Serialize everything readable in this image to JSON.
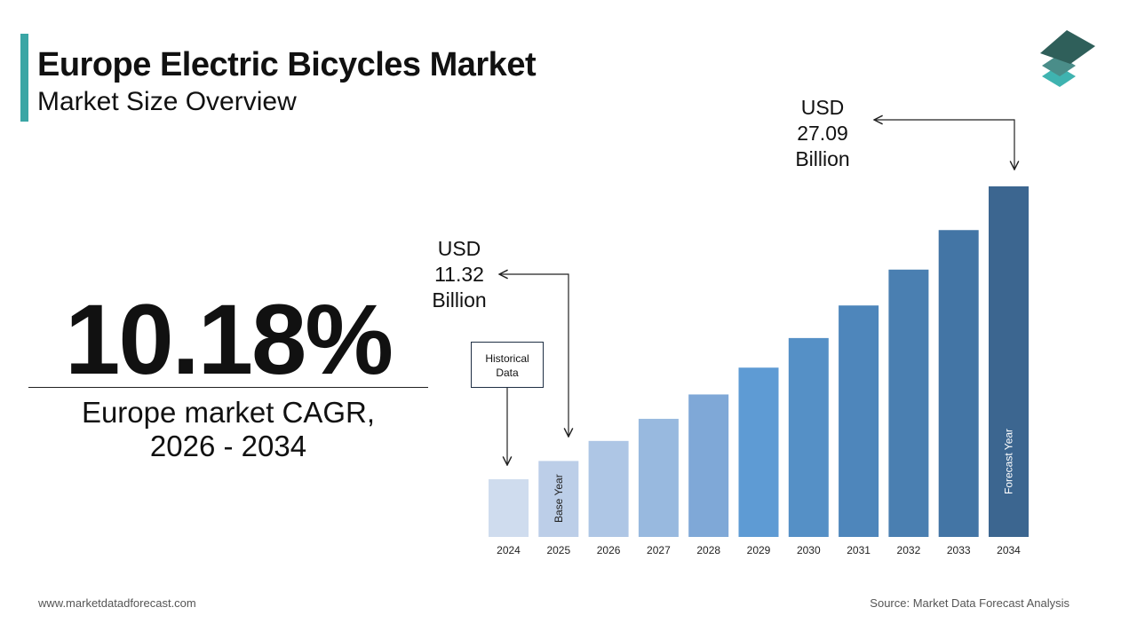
{
  "header": {
    "title": "Europe Electric Bicycles Market",
    "subtitle": "Market Size Overview"
  },
  "logo_icon": "stacked-layers-logo",
  "cagr": {
    "value": "10.18%",
    "label_line1": "Europe market CAGR,",
    "label_line2": "2026 - 2034"
  },
  "callouts": {
    "start": {
      "line1": "USD",
      "line2": "11.32",
      "line3": "Billion"
    },
    "end": {
      "line1": "USD",
      "line2": "27.09",
      "line3": "Billion"
    },
    "historical": {
      "line1": "Historical",
      "line2": "Data"
    }
  },
  "footer": {
    "website": "www.marketdatadforecast.com",
    "source": "Source: Market Data Forecast Analysis"
  },
  "chart_data": {
    "type": "bar",
    "title": "",
    "xlabel": "",
    "ylabel": "",
    "categories": [
      "2024",
      "2025",
      "2026",
      "2027",
      "2028",
      "2029",
      "2030",
      "2031",
      "2032",
      "2033",
      "2034"
    ],
    "values": [
      10.27,
      11.32,
      12.47,
      13.74,
      15.14,
      16.68,
      18.38,
      20.25,
      22.31,
      24.58,
      27.09
    ],
    "unit": "USD Billion",
    "bar_labels": {
      "2025": "Base Year",
      "2034": "Forecast Year"
    },
    "colors": [
      "#cfdcee",
      "#bccee8",
      "#aec6e5",
      "#98b9df",
      "#7fa8d7",
      "#5e9bd4",
      "#5590c6",
      "#4e86bb",
      "#4a7fb1",
      "#4375a5",
      "#3c6690"
    ],
    "grid": false,
    "legend": "none"
  }
}
